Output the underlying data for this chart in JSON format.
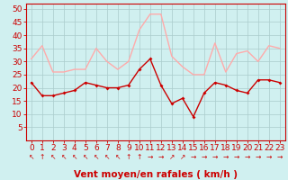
{
  "hours": [
    0,
    1,
    2,
    3,
    4,
    5,
    6,
    7,
    8,
    9,
    10,
    11,
    12,
    13,
    14,
    15,
    16,
    17,
    18,
    19,
    20,
    21,
    22,
    23
  ],
  "wind_avg": [
    22,
    17,
    17,
    18,
    19,
    22,
    21,
    20,
    20,
    21,
    27,
    31,
    21,
    14,
    16,
    9,
    18,
    22,
    21,
    19,
    18,
    23,
    23,
    22
  ],
  "wind_gust": [
    31,
    36,
    26,
    26,
    27,
    27,
    35,
    30,
    27,
    30,
    42,
    48,
    48,
    32,
    28,
    25,
    25,
    37,
    26,
    33,
    34,
    30,
    36,
    35
  ],
  "avg_color": "#cc0000",
  "gust_color": "#ffaaaa",
  "bg_color": "#d0f0f0",
  "grid_color": "#aacccc",
  "axis_color": "#cc0000",
  "xlabel": "Vent moyen/en rafales ( km/h )",
  "ylim": [
    0,
    52
  ],
  "yticks": [
    5,
    10,
    15,
    20,
    25,
    30,
    35,
    40,
    45,
    50
  ],
  "tick_fontsize": 6.5,
  "xlabel_fontsize": 7.5,
  "arrow_chars": [
    "↖",
    "↑",
    "↖",
    "↖",
    "↖",
    "↖",
    "↖",
    "↖",
    "↖",
    "↑",
    "↑",
    "→",
    "→",
    "↗",
    "↗",
    "→",
    "→",
    "→",
    "→",
    "→",
    "→",
    "→",
    "→",
    "→"
  ]
}
